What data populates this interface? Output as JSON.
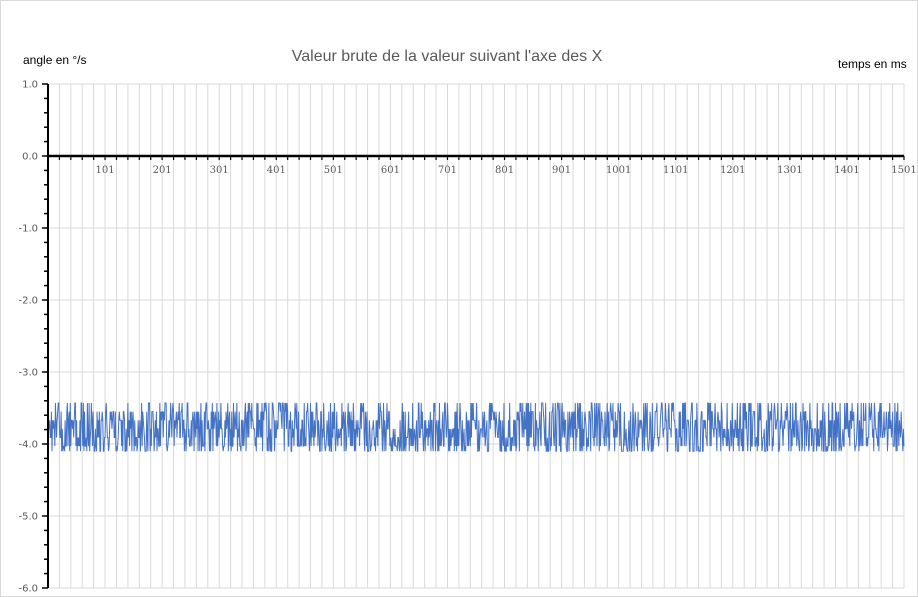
{
  "chart_data": {
    "type": "line",
    "title": "Valeur brute de la valeur suivant l'axe des X",
    "ylabel": "angle en °/s",
    "xlabel": "temps en ms",
    "xlim": [
      1,
      1501
    ],
    "ylim": [
      -6.0,
      1.0
    ],
    "x_ticks": [
      101,
      201,
      301,
      401,
      501,
      601,
      701,
      801,
      901,
      1001,
      1101,
      1201,
      1301,
      1401,
      1501
    ],
    "y_ticks": [
      1.0,
      0.0,
      -1.0,
      -2.0,
      -3.0,
      -4.0,
      -5.0,
      -6.0
    ],
    "y_tick_labels": [
      "1.0",
      "0.0",
      "-1.0",
      "-2.0",
      "-3.0",
      "-4.0",
      "-5.0",
      "-6.0"
    ],
    "grid": true,
    "legend": "none",
    "series": [
      {
        "color": "#4472C4",
        "x_start": 1,
        "x_step": 1,
        "y_levels": [
          -3.43,
          -3.55,
          -3.67,
          -3.79,
          -3.91,
          -4.03,
          -4.1
        ],
        "y_min": -4.1,
        "y_max": -3.4,
        "values": []
      }
    ],
    "colors": {
      "grid": "#d9d9d9",
      "axis": "#000000",
      "series": "#4472C4"
    }
  }
}
